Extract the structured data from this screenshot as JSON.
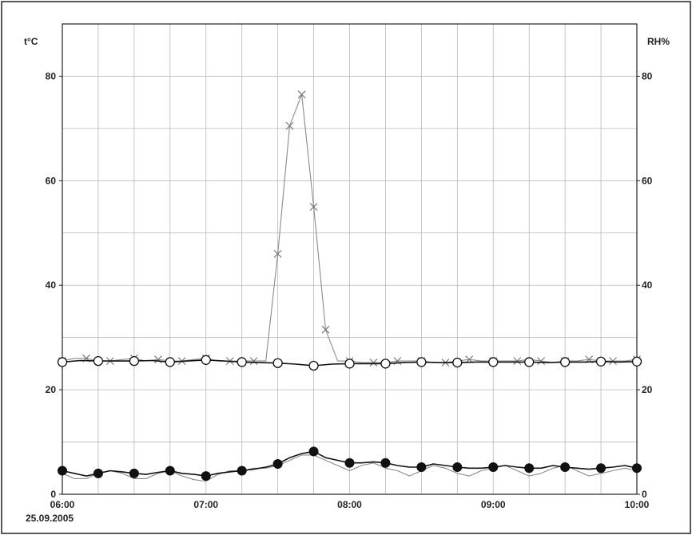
{
  "chart_data": {
    "type": "line",
    "left_axis_label": "t°C",
    "right_axis_label": "RH%",
    "date_label": "25.09.2005",
    "x_tick_labels": [
      "06:00",
      "07:00",
      "08:00",
      "09:00",
      "10:00"
    ],
    "x_ticks_hours": [
      6,
      7,
      8,
      9,
      10
    ],
    "xlim": [
      6,
      10
    ],
    "ylim": [
      0,
      90
    ],
    "y_tick_labels": [
      "0",
      "20",
      "40",
      "60",
      "80"
    ],
    "y_ticks": [
      0,
      20,
      40,
      60,
      80
    ],
    "grid": true,
    "series": [
      {
        "marker": "x",
        "color": "#8a8a8a",
        "x": [
          6.0,
          6.083,
          6.167,
          6.25,
          6.333,
          6.417,
          6.5,
          6.583,
          6.667,
          6.75,
          6.833,
          6.917,
          7.0,
          7.083,
          7.167,
          7.25,
          7.333,
          7.417,
          7.5,
          7.583,
          7.667,
          7.75,
          7.833,
          7.917,
          8.0,
          8.083,
          8.167,
          8.25,
          8.333,
          8.417,
          8.5,
          8.583,
          8.667,
          8.75,
          8.833,
          8.917,
          9.0,
          9.083,
          9.167,
          9.25,
          9.333,
          9.417,
          9.5,
          9.583,
          9.667,
          9.75,
          9.833,
          9.917,
          10.0
        ],
        "y": [
          25.5,
          26.0,
          26.0,
          25.5,
          25.5,
          25.8,
          26.0,
          25.5,
          25.8,
          25.5,
          25.5,
          25.8,
          26.0,
          25.5,
          25.5,
          25.5,
          25.5,
          25.5,
          46.0,
          70.5,
          76.5,
          55.0,
          31.5,
          25.5,
          25.5,
          25.2,
          25.2,
          25.2,
          25.5,
          25.5,
          25.5,
          25.2,
          25.2,
          25.5,
          25.8,
          25.5,
          25.5,
          25.5,
          25.5,
          25.8,
          25.5,
          25.2,
          25.5,
          25.5,
          25.8,
          25.5,
          25.5,
          25.5,
          25.8
        ]
      },
      {
        "marker": "open-circle",
        "color": "#111111",
        "x": [
          6.0,
          6.125,
          6.25,
          6.375,
          6.5,
          6.625,
          6.75,
          6.875,
          7.0,
          7.125,
          7.25,
          7.375,
          7.5,
          7.625,
          7.75,
          7.875,
          8.0,
          8.125,
          8.25,
          8.375,
          8.5,
          8.625,
          8.75,
          8.875,
          9.0,
          9.125,
          9.25,
          9.375,
          9.5,
          9.625,
          9.75,
          9.875,
          10.0
        ],
        "y": [
          25.3,
          25.6,
          25.5,
          25.5,
          25.5,
          25.6,
          25.3,
          25.5,
          25.7,
          25.5,
          25.3,
          25.2,
          25.1,
          24.9,
          24.6,
          24.9,
          25.0,
          25.0,
          25.0,
          25.2,
          25.3,
          25.2,
          25.2,
          25.3,
          25.3,
          25.3,
          25.3,
          25.2,
          25.3,
          25.3,
          25.4,
          25.3,
          25.4
        ]
      },
      {
        "marker": "filled-circle",
        "color": "#111111",
        "x": [
          6.0,
          6.083,
          6.167,
          6.25,
          6.333,
          6.417,
          6.5,
          6.583,
          6.667,
          6.75,
          6.833,
          6.917,
          7.0,
          7.083,
          7.167,
          7.25,
          7.333,
          7.417,
          7.5,
          7.583,
          7.667,
          7.75,
          7.833,
          7.917,
          8.0,
          8.083,
          8.167,
          8.25,
          8.333,
          8.417,
          8.5,
          8.583,
          8.667,
          8.75,
          8.833,
          8.917,
          9.0,
          9.083,
          9.167,
          9.25,
          9.333,
          9.417,
          9.5,
          9.583,
          9.667,
          9.75,
          9.833,
          9.917,
          10.0
        ],
        "y": [
          4.5,
          4.0,
          3.5,
          4.0,
          4.5,
          4.3,
          4.0,
          3.8,
          4.2,
          4.5,
          4.0,
          3.8,
          3.5,
          4.0,
          4.3,
          4.5,
          4.8,
          5.2,
          5.8,
          7.0,
          7.8,
          8.2,
          7.0,
          6.5,
          6.0,
          6.0,
          6.2,
          6.0,
          5.5,
          5.2,
          5.2,
          5.8,
          5.5,
          5.2,
          5.0,
          5.0,
          5.2,
          5.5,
          5.2,
          5.0,
          5.0,
          5.5,
          5.2,
          5.0,
          4.8,
          5.0,
          5.2,
          5.5,
          5.0
        ]
      },
      {
        "marker": "none",
        "color": "#8a8a8a",
        "x": [
          6.0,
          6.083,
          6.167,
          6.25,
          6.333,
          6.417,
          6.5,
          6.583,
          6.667,
          6.75,
          6.833,
          6.917,
          7.0,
          7.083,
          7.167,
          7.25,
          7.333,
          7.417,
          7.5,
          7.583,
          7.667,
          7.75,
          7.833,
          7.917,
          8.0,
          8.083,
          8.167,
          8.25,
          8.333,
          8.417,
          8.5,
          8.583,
          8.667,
          8.75,
          8.833,
          8.917,
          9.0,
          9.083,
          9.167,
          9.25,
          9.333,
          9.417,
          9.5,
          9.583,
          9.667,
          9.75,
          9.833,
          9.917,
          10.0
        ],
        "y": [
          4.0,
          3.0,
          3.0,
          4.0,
          4.5,
          4.0,
          3.0,
          3.0,
          4.0,
          4.5,
          3.5,
          2.8,
          2.5,
          3.8,
          4.5,
          4.5,
          5.0,
          5.0,
          5.5,
          6.5,
          7.5,
          7.5,
          6.5,
          5.5,
          4.5,
          5.5,
          6.0,
          5.0,
          4.5,
          3.5,
          4.5,
          5.5,
          5.0,
          4.0,
          3.5,
          4.5,
          5.0,
          5.5,
          4.5,
          3.5,
          4.0,
          5.0,
          5.5,
          4.5,
          3.5,
          4.0,
          4.5,
          5.0,
          4.5
        ]
      }
    ]
  }
}
